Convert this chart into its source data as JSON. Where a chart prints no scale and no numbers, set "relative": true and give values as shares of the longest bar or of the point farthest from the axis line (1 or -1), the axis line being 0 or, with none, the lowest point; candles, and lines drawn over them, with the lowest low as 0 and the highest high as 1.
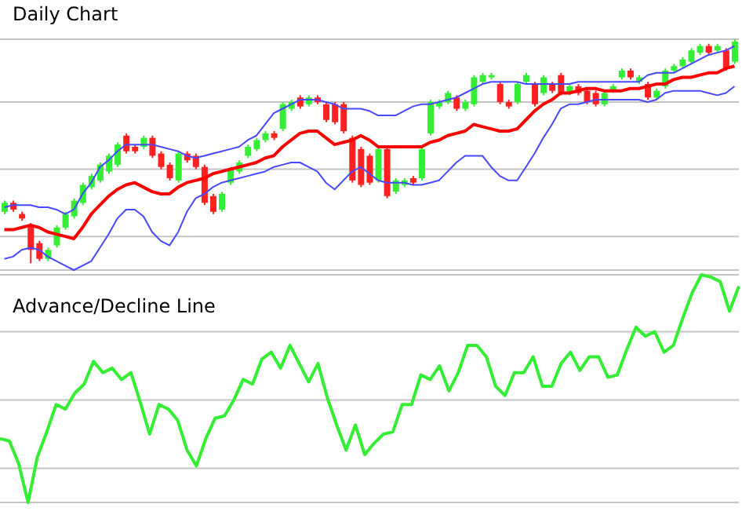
{
  "chart_data": [
    {
      "type": "candlestick",
      "title": "Daily Chart",
      "relative": true,
      "grid": true,
      "categories": [
        null,
        null,
        null,
        null,
        null,
        null,
        null,
        null,
        null,
        null,
        null,
        null,
        null,
        null,
        null,
        null,
        null,
        null,
        null,
        null,
        null,
        null,
        null,
        null,
        null,
        null,
        null,
        null,
        null,
        null,
        null,
        null,
        null,
        null,
        null,
        null,
        null,
        null,
        null,
        null,
        null,
        null,
        null,
        null,
        null,
        null,
        null,
        null,
        null,
        null,
        null,
        null,
        null,
        null,
        null,
        null,
        null,
        null,
        null,
        null,
        null,
        null,
        null,
        null,
        null,
        null,
        null,
        null,
        null,
        null,
        null,
        null,
        null,
        null,
        null,
        null,
        null,
        null,
        null,
        null,
        null,
        null,
        null,
        null,
        null
      ],
      "ohlc": [
        [
          0.23,
          0.28,
          0.22,
          0.27
        ],
        [
          0.27,
          0.28,
          0.23,
          0.24
        ],
        [
          0.22,
          0.23,
          0.19,
          0.2
        ],
        [
          0.17,
          0.18,
          0,
          0.06
        ],
        [
          0.09,
          0.1,
          0.01,
          0.02
        ],
        [
          0.02,
          0.07,
          0.01,
          0.06
        ],
        [
          0.08,
          0.17,
          0.07,
          0.16
        ],
        [
          0.16,
          0.23,
          0.15,
          0.22
        ],
        [
          0.21,
          0.29,
          0.2,
          0.28
        ],
        [
          0.27,
          0.36,
          0.26,
          0.35
        ],
        [
          0.34,
          0.4,
          0.33,
          0.39
        ],
        [
          0.37,
          0.45,
          0.36,
          0.44
        ],
        [
          0.41,
          0.49,
          0.4,
          0.48
        ],
        [
          0.44,
          0.54,
          0.43,
          0.53
        ],
        [
          0.57,
          0.58,
          0.49,
          0.5
        ],
        [
          0.52,
          0.53,
          0.49,
          0.5
        ],
        [
          0.52,
          0.57,
          0.51,
          0.56
        ],
        [
          0.56,
          0.57,
          0.47,
          0.48
        ],
        [
          0.49,
          0.5,
          0.42,
          0.43
        ],
        [
          0.44,
          0.45,
          0.37,
          0.38
        ],
        [
          0.37,
          0.5,
          0.36,
          0.49
        ],
        [
          0.49,
          0.5,
          0.45,
          0.46
        ],
        [
          0.48,
          0.49,
          0.42,
          0.43
        ],
        [
          0.43,
          0.44,
          0.26,
          0.27
        ],
        [
          0.3,
          0.31,
          0.22,
          0.23
        ],
        [
          0.24,
          0.32,
          0.23,
          0.31
        ],
        [
          0.36,
          0.43,
          0.35,
          0.42
        ],
        [
          0.41,
          0.46,
          0.4,
          0.45
        ],
        [
          0.48,
          0.53,
          0.47,
          0.52
        ],
        [
          0.51,
          0.56,
          0.5,
          0.55
        ],
        [
          0.55,
          0.59,
          0.54,
          0.58
        ],
        [
          0.58,
          0.59,
          0.55,
          0.56
        ],
        [
          0.6,
          0.72,
          0.59,
          0.71
        ],
        [
          0.69,
          0.73,
          0.68,
          0.72
        ],
        [
          0.74,
          0.75,
          0.69,
          0.7
        ],
        [
          0.71,
          0.75,
          0.7,
          0.74
        ],
        [
          0.74,
          0.75,
          0.71,
          0.72
        ],
        [
          0.71,
          0.72,
          0.63,
          0.64
        ],
        [
          0.71,
          0.72,
          0.62,
          0.63
        ],
        [
          0.71,
          0.72,
          0.58,
          0.59
        ],
        [
          0.56,
          0.57,
          0.36,
          0.37
        ],
        [
          0.51,
          0.52,
          0.34,
          0.35
        ],
        [
          0.48,
          0.49,
          0.35,
          0.36
        ],
        [
          0.37,
          0.52,
          0.36,
          0.51
        ],
        [
          0.51,
          0.52,
          0.29,
          0.3
        ],
        [
          0.32,
          0.38,
          0.31,
          0.37
        ],
        [
          0.35,
          0.38,
          0.34,
          0.37
        ],
        [
          0.38,
          0.39,
          0.35,
          0.36
        ],
        [
          0.38,
          0.52,
          0.37,
          0.51
        ],
        [
          0.58,
          0.73,
          0.57,
          0.72
        ],
        [
          0.7,
          0.73,
          0.69,
          0.72
        ],
        [
          0.72,
          0.77,
          0.71,
          0.76
        ],
        [
          0.74,
          0.75,
          0.68,
          0.69
        ],
        [
          0.69,
          0.73,
          0.68,
          0.72
        ],
        [
          0.71,
          0.84,
          0.7,
          0.83
        ],
        [
          0.81,
          0.85,
          0.8,
          0.84
        ],
        [
          0.83,
          0.85,
          0.82,
          0.84
        ],
        [
          0.8,
          0.81,
          0.71,
          0.72
        ],
        [
          0.72,
          0.73,
          0.69,
          0.7
        ],
        [
          0.72,
          0.81,
          0.71,
          0.8
        ],
        [
          0.81,
          0.85,
          0.8,
          0.84
        ],
        [
          0.8,
          0.81,
          0.7,
          0.71
        ],
        [
          0.76,
          0.84,
          0.75,
          0.83
        ],
        [
          0.8,
          0.81,
          0.76,
          0.77
        ],
        [
          0.84,
          0.85,
          0.75,
          0.76
        ],
        [
          0.76,
          0.8,
          0.75,
          0.79
        ],
        [
          0.79,
          0.8,
          0.75,
          0.76
        ],
        [
          0.77,
          0.78,
          0.71,
          0.72
        ],
        [
          0.76,
          0.77,
          0.7,
          0.71
        ],
        [
          0.71,
          0.77,
          0.7,
          0.76
        ],
        [
          0.77,
          0.8,
          0.76,
          0.79
        ],
        [
          0.83,
          0.87,
          0.82,
          0.86
        ],
        [
          0.86,
          0.87,
          0.82,
          0.83
        ],
        [
          0.81,
          0.84,
          0.8,
          0.83
        ],
        [
          0.8,
          0.81,
          0.73,
          0.74
        ],
        [
          0.74,
          0.78,
          0.73,
          0.77
        ],
        [
          0.79,
          0.87,
          0.78,
          0.86
        ],
        [
          0.86,
          0.89,
          0.85,
          0.88
        ],
        [
          0.88,
          0.92,
          0.87,
          0.91
        ],
        [
          0.9,
          0.96,
          0.89,
          0.95
        ],
        [
          0.94,
          0.98,
          0.93,
          0.97
        ],
        [
          0.97,
          0.98,
          0.93,
          0.94
        ],
        [
          0.95,
          0.98,
          0.94,
          0.97
        ],
        [
          0.95,
          0.96,
          0.86,
          0.87
        ],
        [
          0.9,
          1,
          0.89,
          0.99
        ]
      ],
      "colors": [
        "#33ee33",
        "#ff2020",
        "#ff2020",
        "#ff2020",
        "#ff2020",
        "#33ee33",
        "#33ee33",
        "#33ee33",
        "#33ee33",
        "#33ee33",
        "#33ee33",
        "#33ee33",
        "#33ee33",
        "#33ee33",
        "#ff2020",
        "#ff2020",
        "#33ee33",
        "#ff2020",
        "#ff2020",
        "#ff2020",
        "#33ee33",
        "#ff2020",
        "#ff2020",
        "#ff2020",
        "#ff2020",
        "#33ee33",
        "#33ee33",
        "#33ee33",
        "#33ee33",
        "#33ee33",
        "#33ee33",
        "#ff2020",
        "#33ee33",
        "#33ee33",
        "#ff2020",
        "#33ee33",
        "#ff2020",
        "#ff2020",
        "#ff2020",
        "#ff2020",
        "#ff2020",
        "#ff2020",
        "#ff2020",
        "#33ee33",
        "#ff2020",
        "#33ee33",
        "#33ee33",
        "#ff2020",
        "#33ee33",
        "#33ee33",
        "#33ee33",
        "#33ee33",
        "#ff2020",
        "#33ee33",
        "#33ee33",
        "#33ee33",
        "#33ee33",
        "#ff2020",
        "#ff2020",
        "#33ee33",
        "#33ee33",
        "#ff2020",
        "#33ee33",
        "#ff2020",
        "#ff2020",
        "#33ee33",
        "#ff2020",
        "#ff2020",
        "#ff2020",
        "#33ee33",
        "#33ee33",
        "#33ee33",
        "#ff2020",
        "#33ee33",
        "#ff2020",
        "#33ee33",
        "#33ee33",
        "#33ee33",
        "#33ee33",
        "#33ee33",
        "#33ee33",
        "#ff2020",
        "#33ee33",
        "#ff2020",
        "#33ee33"
      ],
      "series": [
        {
          "type": "line",
          "color": "#4848ff",
          "values": [
            0.25,
            0.26,
            0.26,
            0.26,
            0.25,
            0.25,
            0.24,
            0.22,
            0.24,
            0.31,
            0.36,
            0.43,
            0.46,
            0.5,
            0.53,
            0.53,
            0.53,
            0.53,
            0.52,
            0.51,
            0.5,
            0.48,
            0.47,
            0.48,
            0.49,
            0.5,
            0.51,
            0.52,
            0.55,
            0.57,
            0.62,
            0.67,
            0.69,
            0.71,
            0.73,
            0.73,
            0.73,
            0.72,
            0.71,
            0.69,
            0.69,
            0.69,
            0.68,
            0.66,
            0.66,
            0.66,
            0.68,
            0.7,
            0.71,
            0.71,
            0.72,
            0.73,
            0.74,
            0.76,
            0.78,
            0.8,
            0.81,
            0.81,
            0.81,
            0.81,
            0.8,
            0.8,
            0.8,
            0.8,
            0.8,
            0.8,
            0.81,
            0.81,
            0.81,
            0.81,
            0.81,
            0.81,
            0.81,
            0.81,
            0.84,
            0.85,
            0.85,
            0.85,
            0.87,
            0.89,
            0.91,
            0.93,
            0.94,
            0.95,
            0.97
          ]
        },
        {
          "type": "line",
          "color": "#ff0000",
          "values": [
            0.15,
            0.15,
            0.16,
            0.17,
            0.16,
            0.14,
            0.13,
            0.12,
            0.11,
            0.16,
            0.22,
            0.26,
            0.3,
            0.33,
            0.35,
            0.36,
            0.34,
            0.32,
            0.31,
            0.31,
            0.34,
            0.36,
            0.37,
            0.38,
            0.4,
            0.41,
            0.42,
            0.43,
            0.44,
            0.45,
            0.47,
            0.48,
            0.52,
            0.55,
            0.58,
            0.59,
            0.59,
            0.56,
            0.53,
            0.54,
            0.55,
            0.57,
            0.55,
            0.52,
            0.52,
            0.52,
            0.52,
            0.52,
            0.52,
            0.54,
            0.55,
            0.57,
            0.58,
            0.59,
            0.62,
            0.61,
            0.6,
            0.59,
            0.59,
            0.6,
            0.64,
            0.68,
            0.71,
            0.73,
            0.76,
            0.76,
            0.77,
            0.78,
            0.78,
            0.77,
            0.77,
            0.77,
            0.78,
            0.78,
            0.79,
            0.8,
            0.8,
            0.82,
            0.83,
            0.83,
            0.84,
            0.85,
            0.85,
            0.87,
            0.88
          ]
        },
        {
          "type": "line",
          "color": "#4848ff",
          "values": [
            0.02,
            0.03,
            0.06,
            0.07,
            0.06,
            0.03,
            0.01,
            -0.01,
            -0.03,
            -0.01,
            0.01,
            0.07,
            0.13,
            0.2,
            0.24,
            0.24,
            0.21,
            0.14,
            0.1,
            0.08,
            0.14,
            0.23,
            0.29,
            0.31,
            0.34,
            0.36,
            0.37,
            0.38,
            0.39,
            0.4,
            0.41,
            0.43,
            0.44,
            0.45,
            0.45,
            0.43,
            0.41,
            0.36,
            0.33,
            0.37,
            0.41,
            0.43,
            0.4,
            0.37,
            0.36,
            0.36,
            0.36,
            0.35,
            0.35,
            0.36,
            0.37,
            0.41,
            0.45,
            0.48,
            0.48,
            0.48,
            0.43,
            0.39,
            0.37,
            0.37,
            0.43,
            0.49,
            0.56,
            0.62,
            0.69,
            0.71,
            0.71,
            0.72,
            0.73,
            0.73,
            0.73,
            0.73,
            0.73,
            0.73,
            0.72,
            0.73,
            0.76,
            0.77,
            0.77,
            0.77,
            0.77,
            0.76,
            0.75,
            0.76,
            0.79
          ]
        }
      ]
    },
    {
      "type": "line",
      "title": "Advance/Decline Line",
      "relative": true,
      "grid": true,
      "categories": [
        null,
        null,
        null,
        null,
        null,
        null,
        null,
        null,
        null,
        null,
        null,
        null,
        null,
        null,
        null,
        null,
        null,
        null,
        null,
        null,
        null,
        null,
        null,
        null,
        null,
        null,
        null,
        null,
        null,
        null,
        null,
        null,
        null,
        null,
        null,
        null,
        null,
        null,
        null,
        null,
        null,
        null,
        null,
        null,
        null,
        null,
        null,
        null,
        null,
        null,
        null,
        null,
        null,
        null,
        null,
        null,
        null,
        null,
        null,
        null,
        null,
        null,
        null,
        null,
        null,
        null,
        null,
        null,
        null,
        null,
        null,
        null,
        null,
        null,
        null,
        null,
        null,
        null,
        null,
        null
      ],
      "series": [
        {
          "color": "#33ee33",
          "values": [
            0.28,
            0.27,
            0.17,
            0,
            0.2,
            0.31,
            0.43,
            0.41,
            0.48,
            0.52,
            0.62,
            0.57,
            0.59,
            0.54,
            0.57,
            0.44,
            0.3,
            0.43,
            0.41,
            0.36,
            0.23,
            0.16,
            0.28,
            0.37,
            0.38,
            0.45,
            0.54,
            0.52,
            0.63,
            0.66,
            0.59,
            0.69,
            0.61,
            0.53,
            0.61,
            0.46,
            0.34,
            0.23,
            0.34,
            0.21,
            0.26,
            0.3,
            0.31,
            0.43,
            0.43,
            0.56,
            0.54,
            0.6,
            0.49,
            0.57,
            0.69,
            0.69,
            0.64,
            0.51,
            0.47,
            0.57,
            0.57,
            0.64,
            0.51,
            0.51,
            0.61,
            0.66,
            0.58,
            0.64,
            0.64,
            0.55,
            0.56,
            0.67,
            0.77,
            0.73,
            0.75,
            0.66,
            0.69,
            0.81,
            0.92,
            1,
            0.99,
            0.97,
            0.84,
            0.95
          ]
        }
      ]
    }
  ]
}
